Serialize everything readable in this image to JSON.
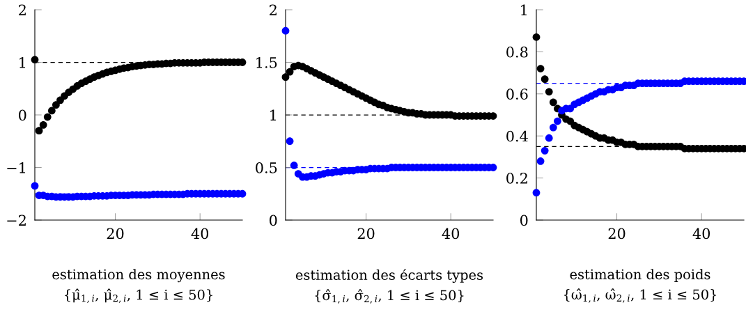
{
  "chart_data": [
    {
      "type": "scatter",
      "xlabel": "estimation des moyennes\n{μ̂$_{1,i}$, μ̂$_{2,i}$, 1 ≤ i ≤ 50}",
      "x": [
        1,
        2,
        3,
        4,
        5,
        6,
        7,
        8,
        9,
        10,
        11,
        12,
        13,
        14,
        15,
        16,
        17,
        18,
        19,
        20,
        21,
        22,
        23,
        24,
        25,
        26,
        27,
        28,
        29,
        30,
        31,
        32,
        33,
        34,
        35,
        36,
        37,
        38,
        39,
        40,
        41,
        42,
        43,
        44,
        45,
        46,
        47,
        48,
        49,
        50
      ],
      "xlim": [
        1,
        50
      ],
      "xticks": [
        20,
        40
      ],
      "ylim": [
        -2,
        2
      ],
      "yticks": [
        {
          "value": -2,
          "label": "−2"
        },
        {
          "value": -1,
          "label": "−1"
        },
        0,
        1,
        2
      ],
      "marker": "circle",
      "grid": false,
      "legend": false,
      "series": [
        {
          "color": "#000000",
          "values": [
            1.05,
            -0.3,
            -0.19,
            -0.04,
            0.08,
            0.19,
            0.28,
            0.36,
            0.43,
            0.49,
            0.55,
            0.6,
            0.64,
            0.68,
            0.72,
            0.75,
            0.78,
            0.81,
            0.83,
            0.85,
            0.87,
            0.89,
            0.9,
            0.92,
            0.93,
            0.94,
            0.95,
            0.96,
            0.96,
            0.97,
            0.97,
            0.98,
            0.98,
            0.99,
            0.99,
            0.99,
            0.99,
            0.99,
            0.99,
            0.99,
            1.0,
            1.0,
            1.0,
            1.0,
            1.0,
            1.0,
            1.0,
            1.0,
            1.0,
            1.0
          ]
        },
        {
          "color": "#0000ff",
          "values": [
            -1.35,
            -1.53,
            -1.53,
            -1.55,
            -1.55,
            -1.56,
            -1.56,
            -1.56,
            -1.56,
            -1.56,
            -1.55,
            -1.55,
            -1.55,
            -1.55,
            -1.54,
            -1.54,
            -1.54,
            -1.54,
            -1.53,
            -1.53,
            -1.53,
            -1.53,
            -1.53,
            -1.52,
            -1.52,
            -1.52,
            -1.52,
            -1.52,
            -1.51,
            -1.51,
            -1.51,
            -1.51,
            -1.51,
            -1.51,
            -1.51,
            -1.51,
            -1.5,
            -1.5,
            -1.5,
            -1.5,
            -1.5,
            -1.5,
            -1.5,
            -1.5,
            -1.5,
            -1.5,
            -1.5,
            -1.5,
            -1.5,
            -1.5
          ]
        }
      ],
      "ref_lines": [
        {
          "axis": "y",
          "value": 1,
          "color": "#000000",
          "line_style": "dashed"
        },
        {
          "axis": "y",
          "value": -1.5,
          "color": "#0000ff",
          "line_style": "dashed"
        }
      ]
    },
    {
      "type": "scatter",
      "xlabel": "estimation des écarts types\n{σ̂$_{1,i}$, σ̂$_{2,i}$, 1 ≤ i ≤ 50}",
      "x": [
        1,
        2,
        3,
        4,
        5,
        6,
        7,
        8,
        9,
        10,
        11,
        12,
        13,
        14,
        15,
        16,
        17,
        18,
        19,
        20,
        21,
        22,
        23,
        24,
        25,
        26,
        27,
        28,
        29,
        30,
        31,
        32,
        33,
        34,
        35,
        36,
        37,
        38,
        39,
        40,
        41,
        42,
        43,
        44,
        45,
        46,
        47,
        48,
        49,
        50
      ],
      "xlim": [
        1,
        50
      ],
      "xticks": [
        20,
        40
      ],
      "ylim": [
        0,
        2
      ],
      "yticks": [
        0,
        0.5,
        1,
        1.5,
        2
      ],
      "marker": "circle",
      "grid": false,
      "legend": false,
      "series": [
        {
          "color": "#000000",
          "values": [
            1.36,
            1.41,
            1.46,
            1.47,
            1.46,
            1.44,
            1.42,
            1.4,
            1.38,
            1.36,
            1.34,
            1.32,
            1.3,
            1.28,
            1.26,
            1.24,
            1.22,
            1.2,
            1.18,
            1.16,
            1.14,
            1.12,
            1.1,
            1.09,
            1.07,
            1.06,
            1.05,
            1.04,
            1.03,
            1.02,
            1.02,
            1.01,
            1.01,
            1.0,
            1.0,
            1.0,
            1.0,
            1.0,
            1.0,
            1.0,
            0.99,
            0.99,
            0.99,
            0.99,
            0.99,
            0.99,
            0.99,
            0.99,
            0.99,
            0.99
          ]
        },
        {
          "color": "#0000ff",
          "values": [
            1.8,
            0.75,
            0.52,
            0.44,
            0.41,
            0.41,
            0.42,
            0.42,
            0.43,
            0.44,
            0.45,
            0.45,
            0.46,
            0.46,
            0.47,
            0.47,
            0.47,
            0.48,
            0.48,
            0.48,
            0.49,
            0.49,
            0.49,
            0.49,
            0.49,
            0.5,
            0.5,
            0.5,
            0.5,
            0.5,
            0.5,
            0.5,
            0.5,
            0.5,
            0.5,
            0.5,
            0.5,
            0.5,
            0.5,
            0.5,
            0.5,
            0.5,
            0.5,
            0.5,
            0.5,
            0.5,
            0.5,
            0.5,
            0.5,
            0.5
          ]
        }
      ],
      "ref_lines": [
        {
          "axis": "y",
          "value": 1,
          "color": "#000000",
          "line_style": "dashed"
        },
        {
          "axis": "y",
          "value": 0.5,
          "color": "#0000ff",
          "line_style": "dashed"
        }
      ]
    },
    {
      "type": "scatter",
      "xlabel": "estimation des poids\n{ω̂$_{1,i}$, ω̂$_{2,i}$, 1 ≤ i ≤ 50}",
      "x": [
        1,
        2,
        3,
        4,
        5,
        6,
        7,
        8,
        9,
        10,
        11,
        12,
        13,
        14,
        15,
        16,
        17,
        18,
        19,
        20,
        21,
        22,
        23,
        24,
        25,
        26,
        27,
        28,
        29,
        30,
        31,
        32,
        33,
        34,
        35,
        36,
        37,
        38,
        39,
        40,
        41,
        42,
        43,
        44,
        45,
        46,
        47,
        48,
        49,
        50
      ],
      "xlim": [
        1,
        50
      ],
      "xticks": [
        20,
        40
      ],
      "ylim": [
        0,
        1
      ],
      "yticks": [
        0,
        0.2,
        0.4,
        0.6,
        0.8,
        1
      ],
      "marker": "circle",
      "grid": false,
      "legend": false,
      "series": [
        {
          "color": "#000000",
          "values": [
            0.87,
            0.72,
            0.67,
            0.61,
            0.56,
            0.53,
            0.5,
            0.48,
            0.47,
            0.45,
            0.44,
            0.43,
            0.42,
            0.41,
            0.4,
            0.39,
            0.39,
            0.38,
            0.38,
            0.37,
            0.37,
            0.36,
            0.36,
            0.36,
            0.35,
            0.35,
            0.35,
            0.35,
            0.35,
            0.35,
            0.35,
            0.35,
            0.35,
            0.35,
            0.35,
            0.34,
            0.34,
            0.34,
            0.34,
            0.34,
            0.34,
            0.34,
            0.34,
            0.34,
            0.34,
            0.34,
            0.34,
            0.34,
            0.34,
            0.34
          ]
        },
        {
          "color": "#0000ff",
          "values": [
            0.13,
            0.28,
            0.33,
            0.39,
            0.44,
            0.47,
            0.52,
            0.53,
            0.53,
            0.55,
            0.56,
            0.57,
            0.58,
            0.59,
            0.6,
            0.61,
            0.61,
            0.62,
            0.62,
            0.63,
            0.63,
            0.64,
            0.64,
            0.64,
            0.65,
            0.65,
            0.65,
            0.65,
            0.65,
            0.65,
            0.65,
            0.65,
            0.65,
            0.65,
            0.65,
            0.66,
            0.66,
            0.66,
            0.66,
            0.66,
            0.66,
            0.66,
            0.66,
            0.66,
            0.66,
            0.66,
            0.66,
            0.66,
            0.66,
            0.66
          ]
        }
      ],
      "ref_lines": [
        {
          "axis": "y",
          "value": 0.65,
          "color": "#0000ff",
          "line_style": "dashed"
        },
        {
          "axis": "y",
          "value": 0.35,
          "color": "#000000",
          "line_style": "dashed"
        }
      ]
    }
  ]
}
